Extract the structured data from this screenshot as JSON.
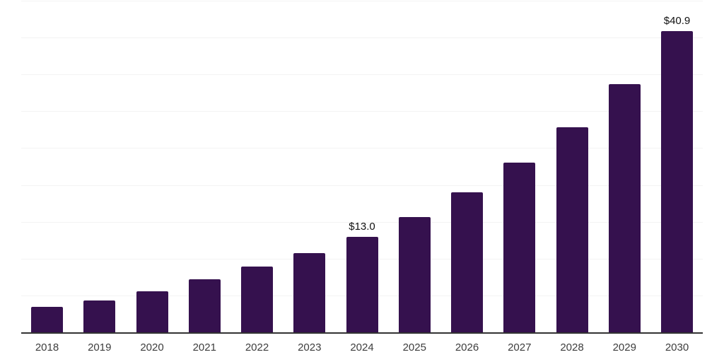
{
  "chart_data": {
    "type": "bar",
    "title": "",
    "xlabel": "",
    "ylabel": "",
    "categories": [
      "2018",
      "2019",
      "2020",
      "2021",
      "2022",
      "2023",
      "2024",
      "2025",
      "2026",
      "2027",
      "2028",
      "2029",
      "2030"
    ],
    "values": [
      3.5,
      4.3,
      5.6,
      7.2,
      8.9,
      10.7,
      13.0,
      15.6,
      19.0,
      23.0,
      27.8,
      33.7,
      40.9
    ],
    "value_labels": [
      "",
      "",
      "",
      "",
      "",
      "",
      "$13.0",
      "",
      "",
      "",
      "",
      "",
      "$40.9"
    ],
    "ylim": [
      0,
      45
    ],
    "gridline_step": 5,
    "grid": "horizontal",
    "y_tick_labels_shown": false,
    "legend_position": "none"
  },
  "colors": {
    "bar": "#35114E",
    "gridline": "#f3f3f3",
    "axis_line": "#333333",
    "tick_label": "#3d3d3d",
    "value_label": "#111111",
    "background": "#ffffff"
  }
}
